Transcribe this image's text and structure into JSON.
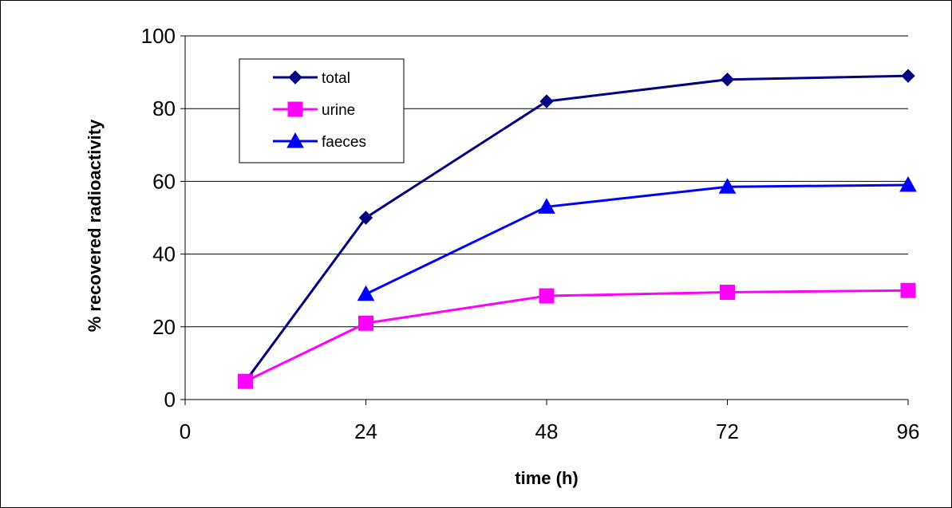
{
  "chart_data": {
    "type": "line",
    "title": "",
    "xlabel": "time (h)",
    "ylabel": "% recovered radioactivity",
    "xlim": [
      0,
      96
    ],
    "ylim": [
      0,
      100
    ],
    "x_ticks": [
      "0",
      "24",
      "48",
      "72",
      "96"
    ],
    "y_ticks": [
      "0",
      "20",
      "40",
      "60",
      "80",
      "100"
    ],
    "grid": "horizontal",
    "legend_position": "top-left",
    "series": [
      {
        "name": "total",
        "color": "#000080",
        "marker": "diamond",
        "x": [
          8,
          24,
          48,
          72,
          96
        ],
        "y": [
          5,
          50,
          82,
          88,
          89
        ]
      },
      {
        "name": "urine",
        "color": "#FF00FF",
        "marker": "square",
        "x": [
          8,
          24,
          48,
          72,
          96
        ],
        "y": [
          5,
          21,
          28.5,
          29.5,
          30
        ]
      },
      {
        "name": "faeces",
        "color": "#0000FF",
        "marker": "triangle",
        "x": [
          24,
          48,
          72,
          96
        ],
        "y": [
          29,
          53,
          58.5,
          59
        ]
      }
    ]
  }
}
